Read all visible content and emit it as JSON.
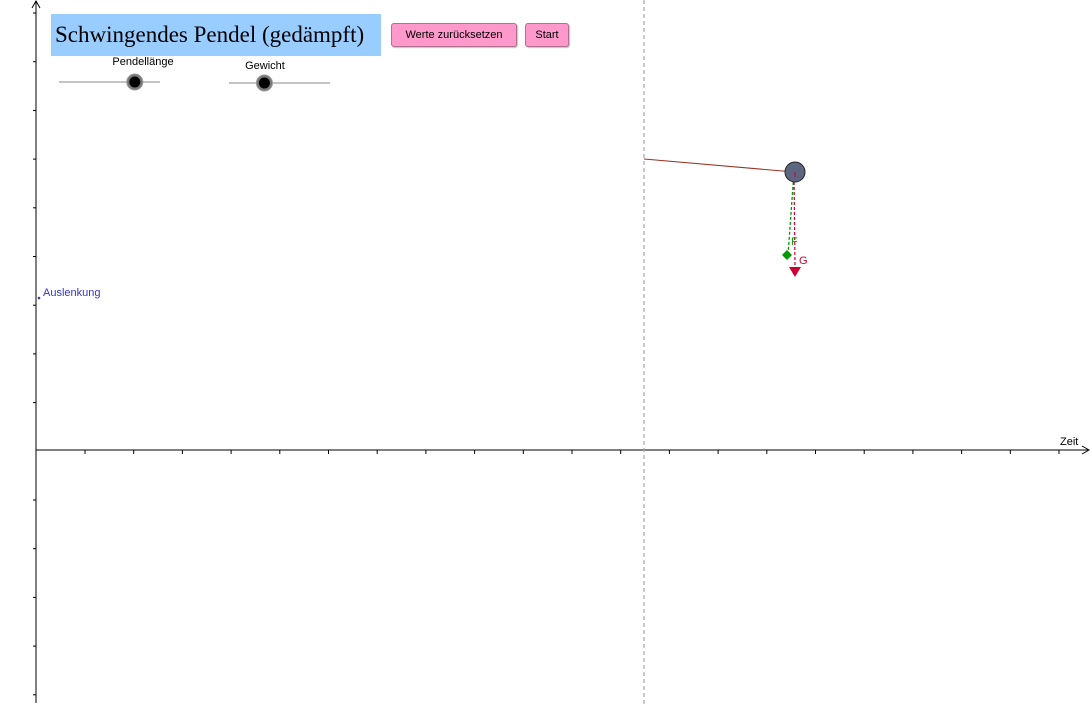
{
  "title": "Schwingendes Pendel (gedämpft)",
  "buttons": {
    "reset_label": "Werte zurücksetzen",
    "start_label": "Start"
  },
  "sliders": [
    {
      "label": "Pendellänge",
      "value": 0.75
    },
    {
      "label": "Gewicht",
      "value": 0.35
    }
  ],
  "axes": {
    "x_label": "Zeit",
    "y_label": "Auslenkung"
  },
  "vectors": {
    "force_label": "F",
    "weight_label": "G"
  },
  "colors": {
    "title_bg": "#99ccff",
    "button_bg": "#ff99cc",
    "y_label": "#3333cc",
    "string": "#993322",
    "bob_fill": "#5c6680",
    "force": "#009900",
    "weight": "#cc0033",
    "guide_line": "#a8a8a8"
  }
}
